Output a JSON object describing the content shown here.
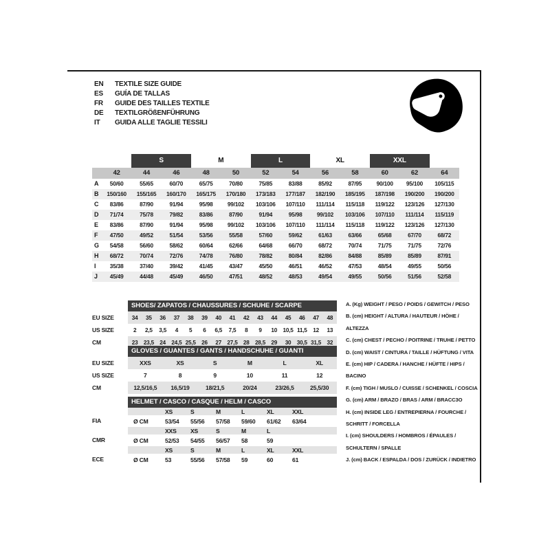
{
  "page_title": "TEXTILE SIZE GUIDE",
  "languages": [
    {
      "code": "EN",
      "title": "TEXTILE SIZE GUIDE"
    },
    {
      "code": "ES",
      "title": "GUÍA DE TALLAS"
    },
    {
      "code": "FR",
      "title": "GUIDE DES TAILLES TEXTILE"
    },
    {
      "code": "DE",
      "title": "TEXTILGRÖßENFÜHRUNG"
    },
    {
      "code": "IT",
      "title": "GUIDA ALLE TAGLIE TESSILI"
    }
  ],
  "icons": {
    "helmet": "racing-helmet-icon"
  },
  "colors": {
    "dark_header": "#3d3d3d",
    "numeric_row_gray": "#c7c7c7",
    "alt_row_gray": "#ededed",
    "small_row_gray": "#e3e3e3",
    "frame_line": "#151515",
    "bar_text": "#ffffff"
  },
  "main_table": {
    "size_groups": [
      {
        "label": "S",
        "dark": true
      },
      {
        "label": "M",
        "dark": false
      },
      {
        "label": "L",
        "dark": true
      },
      {
        "label": "XL",
        "dark": false
      },
      {
        "label": "XXL",
        "dark": true
      }
    ],
    "numeric_sizes": [
      "42",
      "44",
      "46",
      "48",
      "50",
      "52",
      "54",
      "56",
      "58",
      "60",
      "62",
      "64"
    ],
    "rows": [
      {
        "letter": "A",
        "values": [
          "50/60",
          "55/65",
          "60/70",
          "65/75",
          "70/80",
          "75/85",
          "83/88",
          "85/92",
          "87/95",
          "90/100",
          "95/100",
          "105/115"
        ]
      },
      {
        "letter": "B",
        "values": [
          "150/160",
          "155/165",
          "160/170",
          "165/175",
          "170/180",
          "173/183",
          "177/187",
          "182/190",
          "185/195",
          "187/198",
          "190/200",
          "190/200"
        ]
      },
      {
        "letter": "C",
        "values": [
          "83/86",
          "87/90",
          "91/94",
          "95/98",
          "99/102",
          "103/106",
          "107/110",
          "111/114",
          "115/118",
          "119/122",
          "123/126",
          "127/130"
        ]
      },
      {
        "letter": "D",
        "values": [
          "71/74",
          "75/78",
          "79/82",
          "83/86",
          "87/90",
          "91/94",
          "95/98",
          "99/102",
          "103/106",
          "107/110",
          "111/114",
          "115/119"
        ]
      },
      {
        "letter": "E",
        "values": [
          "83/86",
          "87/90",
          "91/94",
          "95/98",
          "99/102",
          "103/106",
          "107/110",
          "111/114",
          "115/118",
          "119/122",
          "123/126",
          "127/130"
        ]
      },
      {
        "letter": "F",
        "values": [
          "47/50",
          "49/52",
          "51/54",
          "53/56",
          "55/58",
          "57/60",
          "59/62",
          "61/63",
          "63/66",
          "65/68",
          "67/70",
          "68/72"
        ]
      },
      {
        "letter": "G",
        "values": [
          "54/58",
          "56/60",
          "58/62",
          "60/64",
          "62/66",
          "64/68",
          "66/70",
          "68/72",
          "70/74",
          "71/75",
          "71/75",
          "72/76"
        ]
      },
      {
        "letter": "H",
        "values": [
          "68/72",
          "70/74",
          "72/76",
          "74/78",
          "76/80",
          "78/82",
          "80/84",
          "82/86",
          "84/88",
          "85/89",
          "85/89",
          "87/91"
        ]
      },
      {
        "letter": "I",
        "values": [
          "35/38",
          "37/40",
          "39/42",
          "41/45",
          "43/47",
          "45/50",
          "46/51",
          "46/52",
          "47/53",
          "48/54",
          "49/55",
          "50/56"
        ]
      },
      {
        "letter": "J",
        "values": [
          "45/49",
          "44/48",
          "45/49",
          "46/50",
          "47/51",
          "48/52",
          "48/53",
          "49/54",
          "49/55",
          "50/56",
          "51/56",
          "52/58"
        ]
      }
    ]
  },
  "shoes_table": {
    "title": "SHOES/ ZAPATOS / CHAUSSURES / SCHUHE / SCARPE",
    "row_labels": [
      "EU SIZE",
      "US SIZE",
      "CM"
    ],
    "rows": [
      [
        "34",
        "35",
        "36",
        "37",
        "38",
        "39",
        "40",
        "41",
        "42",
        "43",
        "44",
        "45",
        "46",
        "47",
        "48"
      ],
      [
        "2",
        "2,5",
        "3,5",
        "4",
        "5",
        "6",
        "6,5",
        "7,5",
        "8",
        "9",
        "10",
        "10,5",
        "11,5",
        "12",
        "13"
      ],
      [
        "23",
        "23,5",
        "24",
        "24,5",
        "25,5",
        "26",
        "27",
        "27,5",
        "28",
        "28,5",
        "29",
        "30",
        "30,5",
        "31,5",
        "32"
      ]
    ]
  },
  "gloves_table": {
    "title": "GLOVES / GUANTES / GANTS / HANDSCHUHE / GUANTI",
    "row_labels": [
      "EU SIZE",
      "US SIZE",
      "CM"
    ],
    "rows": [
      [
        "XXS",
        "XS",
        "S",
        "M",
        "L",
        "XL"
      ],
      [
        "7",
        "8",
        "9",
        "10",
        "11",
        "12"
      ],
      [
        "12,5/16,5",
        "16,5/19",
        "18/21,5",
        "20/24",
        "23/26,5",
        "25,5/30"
      ]
    ]
  },
  "helmet_table": {
    "title": "HELMET / CASCO / CASQUE / HELM / CASCO",
    "unit_label": "Ø CM",
    "standards": [
      {
        "name": "FIA",
        "sizes": [
          "XS",
          "S",
          "M",
          "L",
          "XL",
          "XXL"
        ],
        "values": [
          "53/54",
          "55/56",
          "57/58",
          "59/60",
          "61/62",
          "63/64"
        ]
      },
      {
        "name": "CMR",
        "sizes": [
          "XXS",
          "XS",
          "S",
          "M",
          "L",
          ""
        ],
        "values": [
          "52/53",
          "54/55",
          "56/57",
          "58",
          "59",
          ""
        ]
      },
      {
        "name": "ECE",
        "sizes": [
          "XS",
          "S",
          "M",
          "L",
          "XL",
          "XXL"
        ],
        "values": [
          "53",
          "55/56",
          "57/58",
          "59",
          "60",
          "61"
        ]
      }
    ]
  },
  "legend": {
    "items": [
      "A. (Kg) WEIGHT / PESO / POIDS / GEWITCH / PESO",
      "B. (cm) HEIGHT / ALTURA / HAUTEUR / HÖHE / ALTEZZA",
      "C. (cm) CHEST / PECHO / POITRINE / TRUHE / PETTO",
      "D. (cm) WAIST / CINTURA / TAILLE / HÜFTUNG / VITA",
      "E. (cm) HIP / CADERA / HANCHE / HÜFTE / HIPS / BACINO",
      "F. (cm) TIGH / MUSLO / CUISSE / SCHENKEL / COSCIA",
      "G. (cm) ARM / BRAZO / BRAS / ARM / BRACC3O",
      "H. (cm) INSIDE LEG / ENTREPIERNA / FOURCHE / SCHRITT / FORCELLA",
      "I. (cm) SHOULDERS / HOMBROS / ÉPAULES / SCHULTERN / SPALLE",
      "J. (cm) BACK / ESPALDA / DOS / ZURÜCK / INDIETRO"
    ]
  }
}
